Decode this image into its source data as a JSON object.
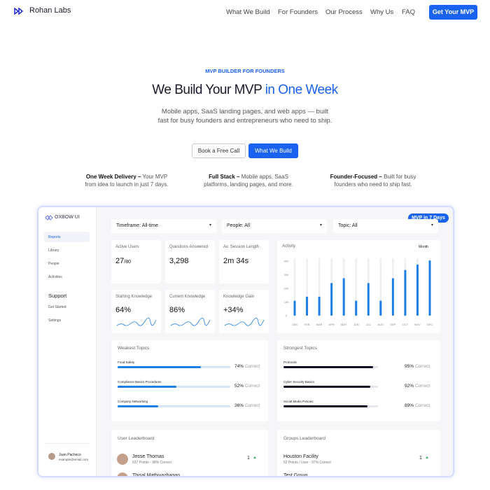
{
  "nav": {
    "brand": "Rohan Labs",
    "links": [
      "What We Build",
      "For Founders",
      "Our Process",
      "Why Us",
      "FAQ"
    ],
    "cta": "Get Your MVP"
  },
  "hero": {
    "eyebrow": "MVP BUILDER FOR FOUNDERS",
    "title": "We Build Your MVP",
    "title_highlight": "in One Week",
    "subtitle": [
      "Mobile apps, SaaS landing pages, and web apps — built",
      "fast for busy founders and entrepreneurs who need to ship."
    ],
    "buttons": [
      "Book a Free Call",
      "What We Build"
    ]
  },
  "features": [
    {
      "title": "One Week Delivery –",
      "text": [
        "Your MVP",
        "from idea to launch in just 7 days."
      ]
    },
    {
      "title": "Full Stack –",
      "text": [
        "Mobile apps, SaaS",
        "platforms, landing pages, and more."
      ]
    },
    {
      "title": "Founder-Focused –",
      "text": [
        "Built for busy",
        "founders who need to ship fast."
      ]
    }
  ],
  "dashboard": {
    "badge": "MVP in 7 Days",
    "brand": "OXBOW UI",
    "menu": [
      "Reports",
      "Library",
      "People",
      "Activities"
    ],
    "support_title": "Support",
    "support": [
      "Get Started",
      "Settings"
    ],
    "user": {
      "name": "Juan Pacheco",
      "email": "example@email.com"
    },
    "filters": [
      "Timeframe: All-time",
      "People: All",
      "Topic: All"
    ],
    "stats": [
      {
        "label": "Active Users",
        "value": "27",
        "suffix": "/80"
      },
      {
        "label": "Questions Answered",
        "value": "3,298"
      },
      {
        "label": "Av. Session Length",
        "value": "2m 34s"
      },
      {
        "label": "Starting Knowledge",
        "value": "64%"
      },
      {
        "label": "Current Knowledge",
        "value": "86%"
      },
      {
        "label": "Knowledge Gain",
        "value": "+34%"
      }
    ],
    "activity": {
      "title": "Activity",
      "period": "Month",
      "categories": [
        "JAN",
        "FEB",
        "MAR",
        "APR",
        "MAY",
        "JUN",
        "JUL",
        "AUG",
        "SEP",
        "OCT",
        "NOV",
        "DEC"
      ],
      "values": [
        110,
        140,
        140,
        240,
        275,
        110,
        240,
        110,
        275,
        335,
        375,
        405
      ],
      "yticks": [
        0,
        100,
        200,
        300,
        400
      ],
      "color": "#1e7ee4"
    },
    "weakest": {
      "title": "Weakest Topics",
      "topics": [
        {
          "name": "Food Safety",
          "value": 74,
          "value_label": "74%",
          "note": "Correct"
        },
        {
          "name": "Compliance Basics Procedures",
          "value": 52,
          "value_label": "52%",
          "note": "Correct"
        },
        {
          "name": "Company Networking",
          "value": 36,
          "value_label": "36%",
          "note": "Correct"
        }
      ]
    },
    "strongest": {
      "title": "Strongest Topics",
      "topics": [
        {
          "name": "Protocols",
          "value": 95,
          "value_label": "95%",
          "note": "Correct"
        },
        {
          "name": "Cyber Security Basics",
          "value": 92,
          "value_label": "92%",
          "note": "Correct"
        },
        {
          "name": "Social Media Policies",
          "value": 89,
          "value_label": "89%",
          "note": "Correct"
        }
      ]
    },
    "user_leaderboard": {
      "title": "User Leaderboard",
      "rows": [
        {
          "name": "Jesse Thomas",
          "detail": "637 Points - 98% Correct",
          "rank": "1"
        },
        {
          "name": "Thisal Mathiyazhagan"
        }
      ]
    },
    "groups_leaderboard": {
      "title": "Groups Leaderboard",
      "rows": [
        {
          "name": "Houston Facility",
          "detail": "52 Points / User - 97% Correct",
          "rank": "1"
        },
        {
          "name": "Test Group"
        }
      ]
    }
  }
}
